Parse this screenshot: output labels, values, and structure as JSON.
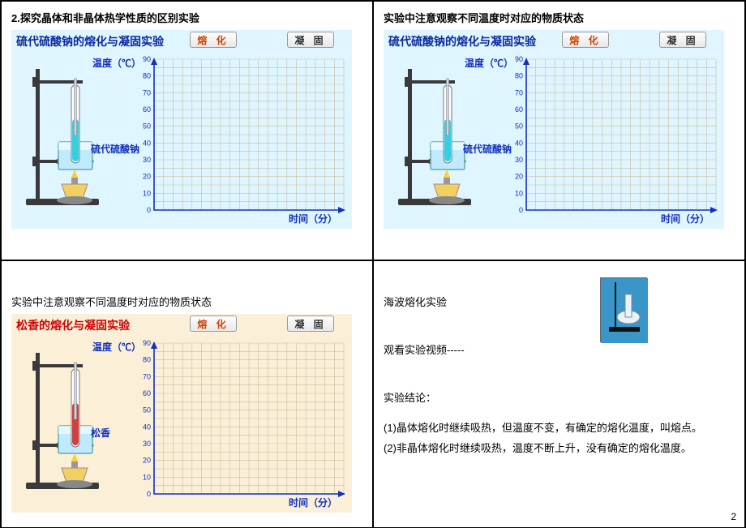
{
  "page_number": "2",
  "panels": {
    "tl": {
      "caption": "2.探究晶体和非晶体热学性质的区别实验",
      "sim": {
        "title": "硫代硫酸钠的熔化与凝固实验",
        "buttons": [
          "熔 化",
          "凝 固"
        ],
        "ylabel": "温度（℃）",
        "xlabel": "时间（分）",
        "sample_label": "硫代硫酸钠",
        "bg": "#dff5ff",
        "title_color": "blue",
        "yticks": [
          0,
          10,
          20,
          30,
          40,
          50,
          60,
          70,
          80,
          90
        ]
      }
    },
    "tr": {
      "caption": "实验中注意观察不同温度时对应的物质状态",
      "sim": {
        "title": "硫代硫酸钠的熔化与凝固实验",
        "buttons": [
          "熔 化",
          "凝 固"
        ],
        "ylabel": "温度（℃）",
        "xlabel": "时间（分）",
        "sample_label": "硫代硫酸钠",
        "bg": "#dff5ff",
        "title_color": "blue",
        "yticks": [
          0,
          10,
          20,
          30,
          40,
          50,
          60,
          70,
          80,
          90
        ]
      }
    },
    "bl": {
      "caption": "实验中注意观察不同温度时对应的物质状态",
      "sim": {
        "title": "松香的熔化与凝固实验",
        "buttons": [
          "熔 化",
          "凝 固"
        ],
        "ylabel": "温度（℃）",
        "xlabel": "时间（分）",
        "sample_label": "松香",
        "bg": "#fbf0d7",
        "title_color": "red",
        "yticks": [
          0,
          10,
          20,
          30,
          40,
          50,
          60,
          70,
          80,
          90
        ]
      }
    },
    "br": {
      "line1": "海波熔化实验",
      "line2": "观看实验视频-----",
      "line3": "实验结论：",
      "line4": "(1)晶体熔化时继续吸热，但温度不变，有确定的熔化温度，叫熔点。",
      "line5": "(2)非晶体熔化时继续吸热，温度不断上升，没有确定的熔化温度。"
    }
  },
  "chart_style": {
    "grid_color": "#c9bfa0",
    "axis_color": "#1030c0",
    "cols": 20,
    "rows": 18
  },
  "apparatus_colors": {
    "stand": "#3a3a3a",
    "beaker_fill": "#bfeaff",
    "tube_fill_blue": "#35d0e0",
    "tube_fill_red": "#d04040",
    "flame": "#ffcc33",
    "burner": "#f0d060"
  }
}
